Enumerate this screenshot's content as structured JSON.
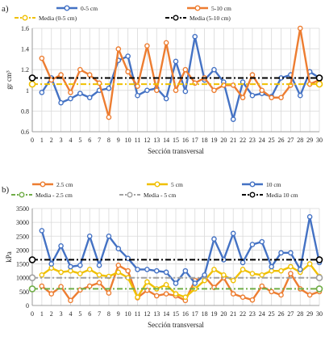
{
  "chart_data": [
    {
      "panel_label": "a)",
      "type": "line",
      "xlabel": "Sección transversal",
      "ylabel": "gr cm³",
      "ylim": [
        0.6,
        1.6
      ],
      "yticks": [
        "0.6",
        "0.8",
        "1",
        "1.2",
        "1.4",
        "1.6"
      ],
      "x": [
        0,
        1,
        2,
        3,
        4,
        5,
        6,
        7,
        8,
        9,
        10,
        11,
        12,
        13,
        14,
        15,
        16,
        17,
        18,
        19,
        20,
        21,
        22,
        23,
        24,
        25,
        26,
        27,
        28,
        29,
        30
      ],
      "grid": true,
      "legend_placement": "top",
      "series": [
        {
          "name": "0-5 cm",
          "style": "line-marker",
          "color": "#4472C4",
          "points": [
            [
              1,
              0.98
            ],
            [
              2,
              1.12
            ],
            [
              3,
              0.88
            ],
            [
              4,
              0.92
            ],
            [
              5,
              0.97
            ],
            [
              6,
              0.93
            ],
            [
              7,
              1.0
            ],
            [
              8,
              1.02
            ],
            [
              9,
              1.29
            ],
            [
              10,
              1.33
            ],
            [
              11,
              0.95
            ],
            [
              12,
              1.0
            ],
            [
              13,
              1.02
            ],
            [
              14,
              0.92
            ],
            [
              15,
              1.28
            ],
            [
              16,
              0.99
            ],
            [
              17,
              1.52
            ],
            [
              18,
              1.1
            ],
            [
              19,
              1.2
            ],
            [
              20,
              1.08
            ],
            [
              21,
              0.72
            ],
            [
              22,
              1.08
            ],
            [
              23,
              0.95
            ],
            [
              24,
              0.97
            ],
            [
              25,
              0.94
            ],
            [
              26,
              1.12
            ],
            [
              27,
              1.15
            ],
            [
              28,
              0.95
            ],
            [
              29,
              1.18
            ],
            [
              30,
              1.12
            ]
          ]
        },
        {
          "name": "5-10 cm",
          "style": "line-marker",
          "color": "#ED7D31",
          "points": [
            [
              1,
              1.31
            ],
            [
              2,
              1.1
            ],
            [
              3,
              1.15
            ],
            [
              4,
              0.98
            ],
            [
              5,
              1.2
            ],
            [
              6,
              1.15
            ],
            [
              7,
              1.07
            ],
            [
              8,
              0.74
            ],
            [
              9,
              1.4
            ],
            [
              10,
              1.18
            ],
            [
              11,
              1.04
            ],
            [
              12,
              1.43
            ],
            [
              13,
              1.0
            ],
            [
              14,
              1.46
            ],
            [
              15,
              1.0
            ],
            [
              16,
              1.2
            ],
            [
              17,
              1.07
            ],
            [
              18,
              1.12
            ],
            [
              19,
              1.0
            ],
            [
              20,
              1.05
            ],
            [
              21,
              1.05
            ],
            [
              22,
              0.93
            ],
            [
              23,
              1.15
            ],
            [
              24,
              1.0
            ],
            [
              25,
              0.93
            ],
            [
              26,
              0.93
            ],
            [
              27,
              1.05
            ],
            [
              28,
              1.6
            ],
            [
              29,
              1.06
            ],
            [
              30,
              1.1
            ]
          ]
        },
        {
          "name": "Media (0-5 cm)",
          "style": "dash-dot",
          "color": "#F0C000",
          "value": 1.06,
          "marker_x": [
            0,
            30
          ]
        },
        {
          "name": "Media (5-10 cm)",
          "style": "dash-dot",
          "color": "#000000",
          "value": 1.12,
          "marker_x": [
            0,
            30
          ]
        }
      ]
    },
    {
      "panel_label": "b)",
      "type": "line",
      "xlabel": "Sección transversal",
      "ylabel": "kPa",
      "ylim": [
        0,
        3500
      ],
      "yticks": [
        "0",
        "500",
        "1000",
        "1500",
        "2000",
        "2500",
        "3000",
        "3500"
      ],
      "x": [
        0,
        1,
        2,
        3,
        4,
        5,
        6,
        7,
        8,
        9,
        10,
        11,
        12,
        13,
        14,
        15,
        16,
        17,
        18,
        19,
        20,
        21,
        22,
        23,
        24,
        25,
        26,
        27,
        28,
        29,
        30
      ],
      "grid": true,
      "legend_placement": "top",
      "series": [
        {
          "name": "2.5 cm",
          "style": "line-marker",
          "color": "#ED7D31",
          "points": [
            [
              1,
              700
            ],
            [
              2,
              420
            ],
            [
              3,
              680
            ],
            [
              4,
              180
            ],
            [
              5,
              560
            ],
            [
              6,
              700
            ],
            [
              7,
              820
            ],
            [
              8,
              450
            ],
            [
              9,
              1450
            ],
            [
              10,
              1250
            ],
            [
              11,
              280
            ],
            [
              12,
              550
            ],
            [
              13,
              350
            ],
            [
              14,
              420
            ],
            [
              15,
              350
            ],
            [
              16,
              180
            ],
            [
              17,
              900
            ],
            [
              18,
              1050
            ],
            [
              19,
              650
            ],
            [
              20,
              1000
            ],
            [
              21,
              420
            ],
            [
              22,
              300
            ],
            [
              23,
              200
            ],
            [
              24,
              700
            ],
            [
              25,
              500
            ],
            [
              26,
              380
            ],
            [
              27,
              1150
            ],
            [
              28,
              600
            ],
            [
              29,
              380
            ],
            [
              30,
              500
            ]
          ]
        },
        {
          "name": "5 cm",
          "style": "line-marker",
          "color": "#F0C000",
          "points": [
            [
              1,
              1100
            ],
            [
              2,
              1350
            ],
            [
              3,
              1200
            ],
            [
              4,
              1250
            ],
            [
              5,
              1150
            ],
            [
              6,
              1300
            ],
            [
              7,
              1100
            ],
            [
              8,
              1050
            ],
            [
              9,
              1200
            ],
            [
              10,
              1000
            ],
            [
              11,
              300
            ],
            [
              12,
              850
            ],
            [
              13,
              600
            ],
            [
              14,
              750
            ],
            [
              15,
              420
            ],
            [
              16,
              300
            ],
            [
              17,
              600
            ],
            [
              18,
              900
            ],
            [
              19,
              1300
            ],
            [
              20,
              1100
            ],
            [
              21,
              900
            ],
            [
              22,
              1300
            ],
            [
              23,
              1150
            ],
            [
              24,
              1100
            ],
            [
              25,
              1250
            ],
            [
              26,
              1250
            ],
            [
              27,
              1400
            ],
            [
              28,
              1200
            ],
            [
              29,
              1500
            ],
            [
              30,
              1050
            ]
          ]
        },
        {
          "name": "10 cm",
          "style": "line-marker",
          "color": "#4472C4",
          "points": [
            [
              1,
              2700
            ],
            [
              2,
              1500
            ],
            [
              3,
              2150
            ],
            [
              4,
              1400
            ],
            [
              5,
              1450
            ],
            [
              6,
              2500
            ],
            [
              7,
              1450
            ],
            [
              8,
              2500
            ],
            [
              9,
              2050
            ],
            [
              10,
              1700
            ],
            [
              11,
              1300
            ],
            [
              12,
              1300
            ],
            [
              13,
              1250
            ],
            [
              14,
              1200
            ],
            [
              15,
              800
            ],
            [
              16,
              1250
            ],
            [
              17,
              800
            ],
            [
              18,
              1100
            ],
            [
              19,
              2400
            ],
            [
              20,
              1650
            ],
            [
              21,
              2600
            ],
            [
              22,
              1550
            ],
            [
              23,
              2200
            ],
            [
              24,
              2300
            ],
            [
              25,
              1400
            ],
            [
              26,
              1900
            ],
            [
              27,
              1900
            ],
            [
              28,
              1300
            ],
            [
              29,
              3200
            ],
            [
              30,
              1550
            ]
          ]
        },
        {
          "name": "Media - 2.5 cm",
          "style": "dash-dot",
          "color": "#70AD47",
          "value": 600,
          "marker_x": [
            0,
            30
          ]
        },
        {
          "name": "Media - 5 cm",
          "style": "dash-dot",
          "color": "#A0A0A0",
          "value": 1000,
          "marker_x": [
            0,
            30
          ]
        },
        {
          "name": "Media 10 cm",
          "style": "dash-dot",
          "color": "#000000",
          "value": 1650,
          "marker_x": [
            0,
            30
          ]
        }
      ]
    }
  ]
}
